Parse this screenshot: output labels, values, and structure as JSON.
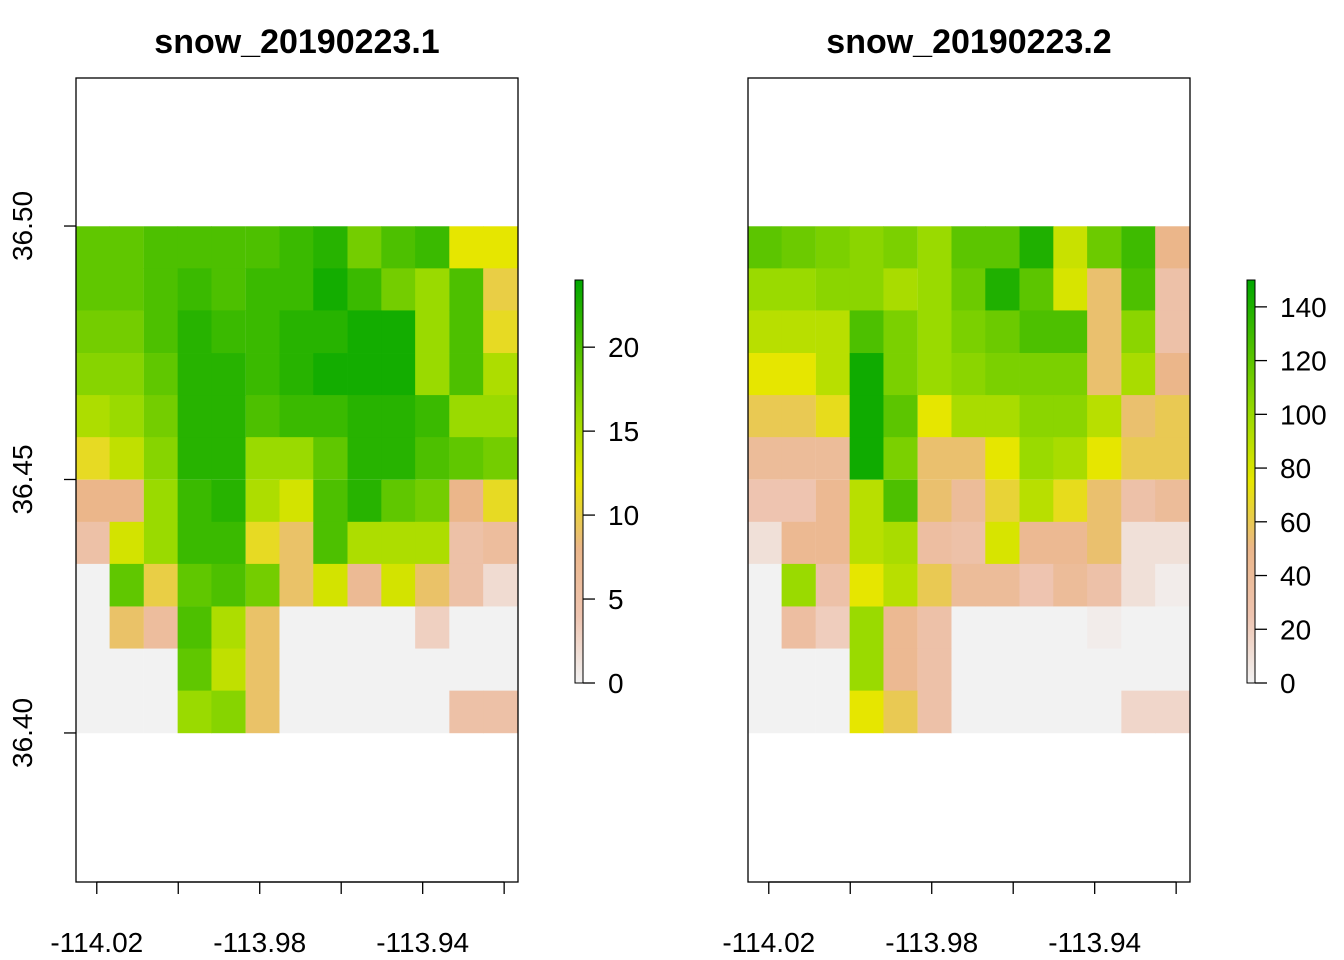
{
  "chart_data": [
    {
      "type": "heatmap",
      "title": "snow_20190223.1",
      "x": [
        -114.021,
        -114.0127,
        -114.0043,
        -113.996,
        -113.9877,
        -113.9793,
        -113.971,
        -113.9627,
        -113.9543,
        -113.946,
        -113.9377,
        -113.9293,
        -113.921
      ],
      "y": [
        36.4958,
        36.4875,
        36.4792,
        36.4708,
        36.4625,
        36.4542,
        36.4458,
        36.4375,
        36.4292,
        36.4208,
        36.4125,
        36.4042
      ],
      "values": [
        [
          19,
          19,
          20,
          20,
          20,
          20,
          21,
          22,
          18,
          20,
          21,
          12,
          12
        ],
        [
          19,
          19,
          20,
          21,
          20,
          21,
          21,
          23,
          21,
          18,
          16,
          20,
          10
        ],
        [
          18,
          18,
          20,
          22,
          21,
          21,
          22,
          22,
          23,
          23,
          16,
          20,
          11
        ],
        [
          17,
          17,
          19,
          22,
          22,
          21,
          22,
          23,
          23,
          23,
          16,
          20,
          15
        ],
        [
          15,
          16,
          18,
          22,
          22,
          20,
          21,
          21,
          22,
          22,
          21,
          16,
          16
        ],
        [
          11,
          14,
          17,
          22,
          22,
          16,
          16,
          19,
          22,
          22,
          20,
          19,
          18
        ],
        [
          8,
          8,
          16,
          21,
          22,
          15,
          13,
          20,
          22,
          19,
          18,
          8,
          11
        ],
        [
          5,
          13,
          16,
          21,
          21,
          11,
          9,
          20,
          15,
          15,
          15,
          5,
          6
        ],
        [
          0,
          19,
          10,
          19,
          20,
          18,
          9,
          13,
          7,
          13,
          9,
          5,
          2
        ],
        [
          0,
          9,
          6,
          20,
          15,
          9,
          0,
          0,
          0,
          0,
          3,
          0,
          0
        ],
        [
          0,
          0,
          0,
          19,
          14,
          9,
          0,
          0,
          0,
          0,
          0,
          0,
          0
        ],
        [
          0,
          0,
          0,
          16,
          17,
          9,
          0,
          0,
          0,
          0,
          0,
          5,
          5
        ]
      ],
      "xlim": [
        -114.0251,
        -113.9166
      ],
      "ylim": [
        36.3706,
        36.5292
      ],
      "xticks": [
        -114.02,
        {
          "value": -114.0,
          "label": null
        },
        -113.98,
        {
          "value": -113.96,
          "label": null
        },
        -113.94,
        {
          "value": -113.92,
          "label": null
        }
      ],
      "yticks": [
        {
          "value": 36.4,
          "label": "36.40"
        },
        36.45,
        {
          "value": 36.5,
          "label": "36.50"
        }
      ],
      "zlim": [
        0,
        24
      ],
      "zticks": [
        0,
        5,
        10,
        15,
        20
      ],
      "palette": [
        "#F2F2F2",
        "#EEC4B0",
        "#EBB68A",
        "#E6E600",
        "#9ADA00",
        "#4DC000",
        "#00A600"
      ]
    },
    {
      "type": "heatmap",
      "title": "snow_20190223.2",
      "x": [
        -114.021,
        -114.0127,
        -114.0043,
        -113.996,
        -113.9877,
        -113.9793,
        -113.971,
        -113.9627,
        -113.9543,
        -113.946,
        -113.9377,
        -113.9293,
        -113.921
      ],
      "y": [
        36.4958,
        36.4875,
        36.4792,
        36.4708,
        36.4625,
        36.4542,
        36.4458,
        36.4375,
        36.4292,
        36.4208,
        36.4125,
        36.4042
      ],
      "values": [
        [
          120,
          115,
          110,
          105,
          110,
          100,
          120,
          120,
          140,
          85,
          115,
          130,
          50
        ],
        [
          100,
          100,
          105,
          105,
          95,
          100,
          115,
          140,
          120,
          80,
          55,
          125,
          30
        ],
        [
          90,
          90,
          90,
          125,
          110,
          100,
          110,
          115,
          125,
          125,
          55,
          105,
          30
        ],
        [
          75,
          75,
          90,
          145,
          110,
          100,
          105,
          110,
          110,
          110,
          55,
          95,
          50
        ],
        [
          60,
          60,
          70,
          145,
          120,
          75,
          95,
          95,
          105,
          105,
          90,
          55,
          60
        ],
        [
          40,
          40,
          40,
          145,
          110,
          55,
          55,
          75,
          100,
          95,
          75,
          60,
          60
        ],
        [
          25,
          25,
          45,
          90,
          125,
          55,
          40,
          65,
          90,
          70,
          55,
          30,
          40
        ],
        [
          10,
          45,
          45,
          90,
          95,
          35,
          30,
          80,
          45,
          45,
          55,
          10,
          10
        ],
        [
          0,
          100,
          30,
          75,
          90,
          60,
          40,
          40,
          25,
          40,
          30,
          10,
          3
        ],
        [
          0,
          35,
          20,
          100,
          45,
          30,
          0,
          0,
          0,
          0,
          3,
          0,
          0
        ],
        [
          0,
          0,
          0,
          100,
          45,
          30,
          0,
          0,
          0,
          0,
          0,
          0,
          0
        ],
        [
          0,
          0,
          0,
          75,
          60,
          30,
          0,
          0,
          0,
          0,
          0,
          15,
          15
        ]
      ],
      "xlim": [
        -114.0251,
        -113.9166
      ],
      "ylim": [
        36.3706,
        36.5292
      ],
      "xticks": [
        -114.02,
        {
          "value": -114.0,
          "label": null
        },
        -113.98,
        {
          "value": -113.96,
          "label": null
        },
        -113.94,
        {
          "value": -113.92,
          "label": null
        }
      ],
      "zlim": [
        0,
        150
      ],
      "zticks": [
        0,
        20,
        40,
        60,
        80,
        100,
        120,
        140
      ],
      "palette": [
        "#F2F2F2",
        "#EEC4B0",
        "#EBB68A",
        "#E6E600",
        "#9ADA00",
        "#4DC000",
        "#00A600"
      ]
    }
  ]
}
